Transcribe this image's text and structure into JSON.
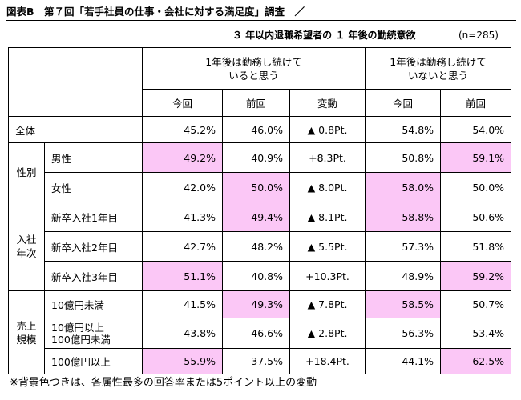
{
  "title": "図表B　第７回「若手社員の仕事・会社に対する満足度」調査　／",
  "subtitle": "３ 年以内退職希望者の １ 年後の勤続意欲",
  "sample_size": "(n=285)",
  "header": {
    "group1": "1年後は勤務し続けて\nいると思う",
    "group2": "1年後は勤務し続けて\nいないと思う",
    "columns": [
      "今回",
      "前回",
      "変動",
      "今回",
      "前回"
    ]
  },
  "rows": [
    {
      "group": "",
      "label": "全体",
      "cells": [
        "45.2%",
        "46.0%",
        "▲ 0.8Pt.",
        "54.8%",
        "54.0%"
      ],
      "pink": [
        false,
        false,
        false,
        false,
        false
      ]
    },
    {
      "group": "性別",
      "label": "男性",
      "cells": [
        "49.2%",
        "40.9%",
        "+8.3Pt.",
        "50.8%",
        "59.1%"
      ],
      "pink": [
        true,
        false,
        false,
        false,
        true
      ]
    },
    {
      "group": "性別",
      "label": "女性",
      "cells": [
        "42.0%",
        "50.0%",
        "▲ 8.0Pt.",
        "58.0%",
        "50.0%"
      ],
      "pink": [
        false,
        true,
        false,
        true,
        false
      ]
    },
    {
      "group": "入社\n年次",
      "label": "新卒入社1年目",
      "cells": [
        "41.3%",
        "49.4%",
        "▲ 8.1Pt.",
        "58.8%",
        "50.6%"
      ],
      "pink": [
        false,
        true,
        false,
        true,
        false
      ]
    },
    {
      "group": "入社\n年次",
      "label": "新卒入社2年目",
      "cells": [
        "42.7%",
        "48.2%",
        "▲ 5.5Pt.",
        "57.3%",
        "51.8%"
      ],
      "pink": [
        false,
        false,
        false,
        false,
        false
      ]
    },
    {
      "group": "入社\n年次",
      "label": "新卒入社3年目",
      "cells": [
        "51.1%",
        "40.8%",
        "+10.3Pt.",
        "48.9%",
        "59.2%"
      ],
      "pink": [
        true,
        false,
        false,
        false,
        true
      ]
    },
    {
      "group": "売上\n規模",
      "label": "10億円未満",
      "cells": [
        "41.5%",
        "49.3%",
        "▲ 7.8Pt.",
        "58.5%",
        "50.7%"
      ],
      "pink": [
        false,
        true,
        false,
        true,
        false
      ]
    },
    {
      "group": "売上\n規模",
      "label": "10億円以上\n100億円未満",
      "cells": [
        "43.8%",
        "46.6%",
        "▲ 2.8Pt.",
        "56.3%",
        "53.4%"
      ],
      "pink": [
        false,
        false,
        false,
        false,
        false
      ]
    },
    {
      "group": "売上\n規模",
      "label": "100億円以上",
      "cells": [
        "55.9%",
        "37.5%",
        "+18.4Pt.",
        "44.1%",
        "62.5%"
      ],
      "pink": [
        true,
        false,
        false,
        false,
        true
      ]
    }
  ],
  "footnote": "※背景色つきは、各属性最多の回答率または5ポイント以上の変動",
  "colors": {
    "highlight": "#fbc7f6",
    "border": "#000000"
  }
}
